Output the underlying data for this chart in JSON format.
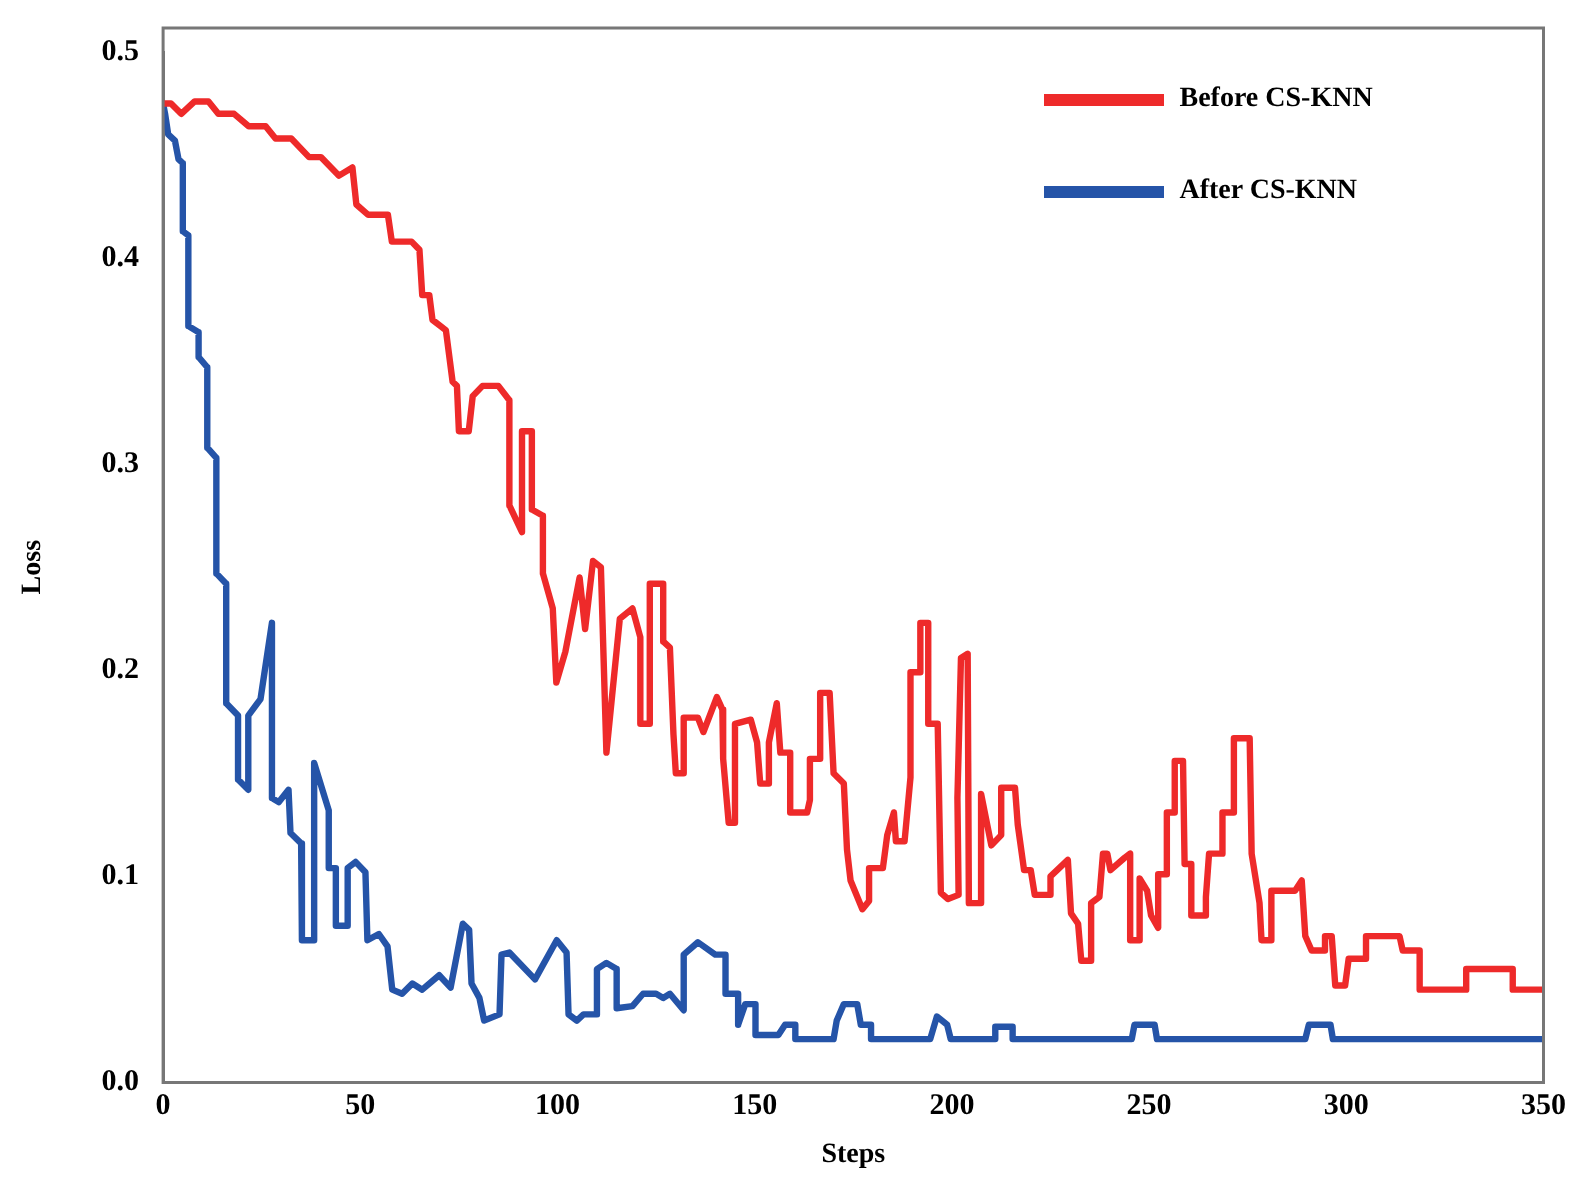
{
  "chart_data": {
    "type": "line",
    "xlabel": "Steps",
    "ylabel": "Loss",
    "xlim": [
      0,
      350
    ],
    "xticks": [
      0,
      50,
      100,
      150,
      200,
      250,
      300,
      350
    ],
    "ylim": [
      0,
      0.5
    ],
    "yticks": [
      {
        "value": 0,
        "label": "0.0"
      },
      0.1,
      0.2,
      0.3,
      0.4,
      0.5
    ],
    "grid": false,
    "legend": "top right",
    "marker": "none",
    "line_style": "solid",
    "series": [
      {
        "name": "Before CS-KNN",
        "color": "#ee2a2a",
        "x": [
          0,
          2,
          4.6,
          8,
          11.5,
          14,
          18,
          21.7,
          26,
          28.5,
          32.5,
          37,
          40,
          44.6,
          48,
          49,
          52,
          57,
          58,
          63,
          65,
          65.7,
          67.5,
          68.3,
          71.7,
          73.4,
          74.5,
          75,
          77.5,
          78.5,
          81,
          85,
          87.8,
          87.8,
          91,
          91,
          93.5,
          93.5,
          96.3,
          96.3,
          98.8,
          99.7,
          102,
          105.6,
          107,
          109,
          111,
          112.4,
          115.8,
          119,
          121,
          121,
          123.4,
          123.4,
          126.8,
          126.8,
          128.5,
          129.4,
          130,
          132,
          132,
          135.6,
          137,
          140.4,
          141.8,
          142,
          143.4,
          145,
          145,
          149,
          150.6,
          151.4,
          153.6,
          153.6,
          155.6,
          156.5,
          159,
          159,
          163.3,
          164,
          164,
          166.6,
          166.6,
          169,
          170,
          172.6,
          173.4,
          174.3,
          177.3,
          179,
          179,
          182.5,
          183.6,
          185.3,
          185.8,
          188,
          189.5,
          189.5,
          192,
          192,
          194,
          194,
          196.4,
          197.2,
          199,
          201.7,
          201.4,
          202.3,
          204,
          204.3,
          207.3,
          207.4,
          210,
          212.5,
          212.5,
          216,
          216.7,
          218.3,
          220,
          221,
          225,
          225,
          229.4,
          230.2,
          232,
          232.8,
          235.3,
          235.3,
          237.4,
          238.3,
          239.4,
          240.2,
          243.8,
          245.2,
          245.2,
          247.6,
          247.6,
          249.5,
          250.5,
          252.3,
          252.3,
          254.5,
          254.5,
          256.5,
          256.5,
          258.6,
          259,
          260.7,
          260.7,
          264,
          264.4,
          265.2,
          268.6,
          268.6,
          271.5,
          271.5,
          275.5,
          276,
          278,
          278.5,
          281,
          281,
          287,
          288.7,
          289.6,
          291.2,
          294.6,
          294.6,
          296.3,
          297.2,
          299.7,
          300.6,
          305,
          305,
          313.5,
          314.3,
          318.6,
          318.6,
          330.4,
          330.4,
          342.2,
          342.2,
          350
        ],
        "values": [
          0.475,
          0.475,
          0.47,
          0.476,
          0.476,
          0.47,
          0.47,
          0.464,
          0.464,
          0.458,
          0.458,
          0.449,
          0.449,
          0.44,
          0.444,
          0.426,
          0.421,
          0.421,
          0.408,
          0.408,
          0.404,
          0.382,
          0.382,
          0.37,
          0.365,
          0.34,
          0.338,
          0.316,
          0.316,
          0.333,
          0.338,
          0.338,
          0.331,
          0.28,
          0.267,
          0.316,
          0.316,
          0.278,
          0.275,
          0.247,
          0.23,
          0.194,
          0.209,
          0.245,
          0.22,
          0.253,
          0.25,
          0.16,
          0.225,
          0.23,
          0.216,
          0.174,
          0.174,
          0.242,
          0.242,
          0.214,
          0.211,
          0.169,
          0.15,
          0.15,
          0.177,
          0.177,
          0.17,
          0.187,
          0.181,
          0.157,
          0.126,
          0.126,
          0.174,
          0.176,
          0.165,
          0.145,
          0.145,
          0.165,
          0.184,
          0.16,
          0.16,
          0.131,
          0.131,
          0.137,
          0.157,
          0.157,
          0.189,
          0.189,
          0.15,
          0.145,
          0.113,
          0.098,
          0.084,
          0.088,
          0.104,
          0.104,
          0.12,
          0.131,
          0.117,
          0.117,
          0.148,
          0.199,
          0.199,
          0.223,
          0.223,
          0.174,
          0.174,
          0.092,
          0.089,
          0.091,
          0.138,
          0.206,
          0.208,
          0.087,
          0.087,
          0.14,
          0.115,
          0.12,
          0.143,
          0.143,
          0.125,
          0.103,
          0.103,
          0.091,
          0.091,
          0.1,
          0.108,
          0.082,
          0.077,
          0.059,
          0.059,
          0.087,
          0.09,
          0.111,
          0.111,
          0.103,
          0.109,
          0.111,
          0.069,
          0.069,
          0.099,
          0.093,
          0.081,
          0.075,
          0.101,
          0.101,
          0.131,
          0.131,
          0.156,
          0.156,
          0.106,
          0.106,
          0.081,
          0.081,
          0.09,
          0.111,
          0.111,
          0.131,
          0.131,
          0.167,
          0.167,
          0.111,
          0.087,
          0.069,
          0.069,
          0.093,
          0.093,
          0.098,
          0.071,
          0.064,
          0.064,
          0.071,
          0.071,
          0.047,
          0.047,
          0.06,
          0.06,
          0.071,
          0.071,
          0.064,
          0.064,
          0.045,
          0.045,
          0.055,
          0.055,
          0.045,
          0.045
        ]
      },
      {
        "name": "After CS-KNN",
        "color": "#2554a8",
        "x": [
          0,
          0.5,
          1.3,
          3,
          3.9,
          5,
          5,
          6.4,
          6.4,
          9,
          9,
          11.2,
          11.2,
          13.5,
          13.5,
          16,
          16,
          19,
          19,
          21.6,
          21.6,
          24.7,
          27.6,
          27.6,
          29.3,
          31.8,
          32.3,
          35,
          35.2,
          38.3,
          38.3,
          42,
          42,
          43.8,
          43.8,
          46.8,
          46.8,
          48.8,
          51.3,
          51.8,
          54.7,
          56.9,
          58.1,
          60.6,
          63.2,
          65.7,
          70,
          72.9,
          76,
          77.6,
          78.2,
          80.2,
          81.4,
          85.3,
          85.8,
          87.8,
          94.3,
          99.8,
          102.3,
          102.8,
          104.9,
          106.6,
          110,
          110,
          112.4,
          115,
          115,
          119,
          121.7,
          125,
          126.8,
          128.5,
          132,
          132,
          135.6,
          140,
          142.6,
          142.6,
          145.8,
          145.8,
          147.6,
          150.2,
          150.2,
          156,
          157.7,
          160.3,
          160.3,
          170,
          170.8,
          172.6,
          176,
          176.9,
          179.5,
          179.5,
          194.5,
          196.2,
          198.8,
          199.7,
          211,
          211,
          215.4,
          215.4,
          245.6,
          246.3,
          251.4,
          252,
          289.6,
          290.5,
          296,
          296.6,
          350
        ],
        "values": [
          0.475,
          0.47,
          0.46,
          0.457,
          0.448,
          0.446,
          0.413,
          0.411,
          0.367,
          0.364,
          0.352,
          0.347,
          0.308,
          0.303,
          0.247,
          0.242,
          0.184,
          0.178,
          0.147,
          0.142,
          0.178,
          0.186,
          0.223,
          0.138,
          0.136,
          0.142,
          0.121,
          0.116,
          0.069,
          0.069,
          0.155,
          0.132,
          0.104,
          0.104,
          0.076,
          0.076,
          0.104,
          0.107,
          0.102,
          0.069,
          0.072,
          0.066,
          0.045,
          0.043,
          0.048,
          0.045,
          0.052,
          0.046,
          0.077,
          0.074,
          0.048,
          0.041,
          0.03,
          0.033,
          0.062,
          0.063,
          0.05,
          0.069,
          0.063,
          0.033,
          0.03,
          0.033,
          0.033,
          0.055,
          0.058,
          0.055,
          0.036,
          0.037,
          0.043,
          0.043,
          0.041,
          0.043,
          0.035,
          0.062,
          0.068,
          0.062,
          0.062,
          0.043,
          0.043,
          0.028,
          0.038,
          0.038,
          0.023,
          0.023,
          0.028,
          0.028,
          0.021,
          0.021,
          0.03,
          0.038,
          0.038,
          0.028,
          0.028,
          0.021,
          0.021,
          0.032,
          0.028,
          0.021,
          0.021,
          0.027,
          0.027,
          0.021,
          0.021,
          0.028,
          0.028,
          0.021,
          0.021,
          0.028,
          0.028,
          0.021,
          0.021
        ]
      }
    ]
  }
}
